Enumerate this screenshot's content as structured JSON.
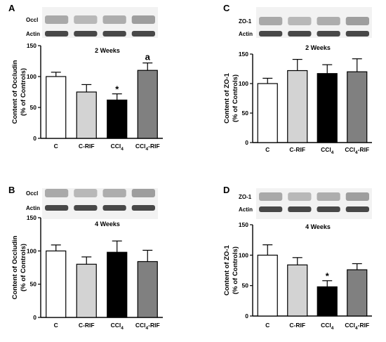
{
  "chart_data": [
    {
      "panel": "A",
      "type": "bar",
      "title": "2 Weeks",
      "ylabel": "Content of Occludin\n(% of Controls)",
      "ylim": [
        0,
        150
      ],
      "yticks": [
        0,
        50,
        100,
        150
      ],
      "categories": [
        "C",
        "C-RIF",
        "CCl4",
        "CCl4-RIF"
      ],
      "values": [
        100,
        75,
        62,
        110
      ],
      "errors": [
        7,
        12,
        10,
        12
      ],
      "bar_colors": [
        "#ffffff",
        "#d3d3d3",
        "#000000",
        "#808080"
      ],
      "annotations": [
        "",
        "",
        "*",
        "a"
      ],
      "blot_labels": [
        "Occl",
        "Actin"
      ]
    },
    {
      "panel": "C",
      "type": "bar",
      "title": "2 Weeks",
      "ylabel": "Content of ZO-1\n(% of Controls)",
      "ylim": [
        0,
        150
      ],
      "yticks": [
        0,
        50,
        100,
        150
      ],
      "categories": [
        "C",
        "C-RIF",
        "CCl4",
        "CCl4-RIF"
      ],
      "values": [
        100,
        122,
        117,
        120
      ],
      "errors": [
        9,
        19,
        15,
        22
      ],
      "bar_colors": [
        "#ffffff",
        "#d3d3d3",
        "#000000",
        "#808080"
      ],
      "annotations": [
        "",
        "",
        "",
        ""
      ],
      "blot_labels": [
        "ZO-1",
        "Actin"
      ]
    },
    {
      "panel": "B",
      "type": "bar",
      "title": "4 Weeks",
      "ylabel": "Content of Occludin\n(% of Controls)",
      "ylim": [
        0,
        150
      ],
      "yticks": [
        0,
        50,
        100,
        150
      ],
      "categories": [
        "C",
        "C-RIF",
        "CCl4",
        "CCl4-RIF"
      ],
      "values": [
        100,
        80,
        98,
        84
      ],
      "errors": [
        9,
        11,
        17,
        17
      ],
      "bar_colors": [
        "#ffffff",
        "#d3d3d3",
        "#000000",
        "#808080"
      ],
      "annotations": [
        "",
        "",
        "",
        ""
      ],
      "blot_labels": [
        "Occl",
        "Actin"
      ]
    },
    {
      "panel": "D",
      "type": "bar",
      "title": "4 Weeks",
      "ylabel": "Content of ZO-1\n(% of Controls)",
      "ylim": [
        0,
        150
      ],
      "yticks": [
        0,
        50,
        100,
        150
      ],
      "categories": [
        "C",
        "C-RIF",
        "CCl4",
        "CCl4-RIF"
      ],
      "values": [
        100,
        84,
        48,
        76
      ],
      "errors": [
        17,
        12,
        10,
        10
      ],
      "bar_colors": [
        "#ffffff",
        "#d3d3d3",
        "#000000",
        "#808080"
      ],
      "annotations": [
        "",
        "",
        "*",
        ""
      ],
      "blot_labels": [
        "ZO-1",
        "Actin"
      ]
    }
  ]
}
